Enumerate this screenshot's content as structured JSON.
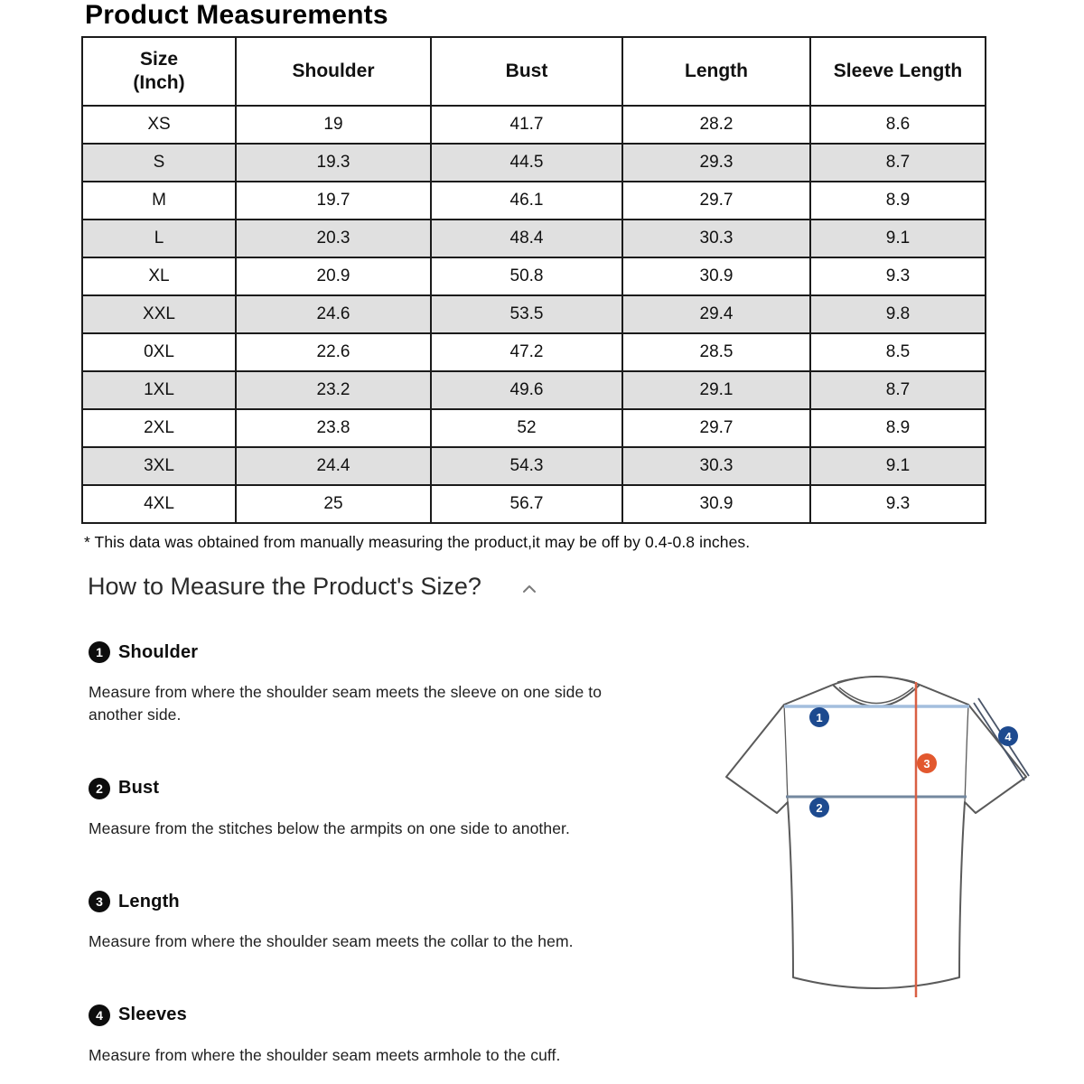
{
  "title": "Product Measurements",
  "table": {
    "size_header": {
      "line1": "Size",
      "line2": "(Inch)"
    },
    "headers": [
      "Shoulder",
      "Bust",
      "Length",
      "Sleeve Length"
    ],
    "rows": [
      {
        "size": "XS",
        "shoulder": "19",
        "bust": "41.7",
        "length": "28.2",
        "sleeve": "8.6"
      },
      {
        "size": "S",
        "shoulder": "19.3",
        "bust": "44.5",
        "length": "29.3",
        "sleeve": "8.7"
      },
      {
        "size": "M",
        "shoulder": "19.7",
        "bust": "46.1",
        "length": "29.7",
        "sleeve": "8.9"
      },
      {
        "size": "L",
        "shoulder": "20.3",
        "bust": "48.4",
        "length": "30.3",
        "sleeve": "9.1"
      },
      {
        "size": "XL",
        "shoulder": "20.9",
        "bust": "50.8",
        "length": "30.9",
        "sleeve": "9.3"
      },
      {
        "size": "XXL",
        "shoulder": "24.6",
        "bust": "53.5",
        "length": "29.4",
        "sleeve": "9.8"
      },
      {
        "size": "0XL",
        "shoulder": "22.6",
        "bust": "47.2",
        "length": "28.5",
        "sleeve": "8.5"
      },
      {
        "size": "1XL",
        "shoulder": "23.2",
        "bust": "49.6",
        "length": "29.1",
        "sleeve": "8.7"
      },
      {
        "size": "2XL",
        "shoulder": "23.8",
        "bust": "52",
        "length": "29.7",
        "sleeve": "8.9"
      },
      {
        "size": "3XL",
        "shoulder": "24.4",
        "bust": "54.3",
        "length": "30.3",
        "sleeve": "9.1"
      },
      {
        "size": "4XL",
        "shoulder": "25",
        "bust": "56.7",
        "length": "30.9",
        "sleeve": "9.3"
      }
    ]
  },
  "footnote": "* This data was obtained from manually measuring the product,it may be off by 0.4-0.8 inches.",
  "how_to": {
    "heading": "How to Measure the Product's Size?",
    "collapse_icon": "chevron-up",
    "sections": [
      {
        "num": "1",
        "label": "Shoulder",
        "description": "Measure from where the shoulder seam meets the sleeve on one side to another side."
      },
      {
        "num": "2",
        "label": "Bust",
        "description": "Measure from the stitches below the armpits on one side to another."
      },
      {
        "num": "3",
        "label": "Length",
        "description": "Measure from where the shoulder seam meets the collar to the hem."
      },
      {
        "num": "4",
        "label": "Sleeves",
        "description": "Measure from where the shoulder seam meets armhole to the cuff."
      }
    ]
  },
  "diagram": {
    "markers": [
      {
        "num": "1",
        "color": "#1d4a8f"
      },
      {
        "num": "2",
        "color": "#1d4a8f"
      },
      {
        "num": "3",
        "color": "#e2582e"
      },
      {
        "num": "4",
        "color": "#1d4a8f"
      }
    ]
  },
  "colors": {
    "row-alt": "#e0e0e0",
    "border": "#1b1b1b",
    "navy": "#1d4a8f",
    "orange": "#e2582e",
    "red-line": "#d95f43",
    "shoulder-line": "#a3bedd",
    "chest-line": "#74889f",
    "outline": "#5a5a5a"
  }
}
